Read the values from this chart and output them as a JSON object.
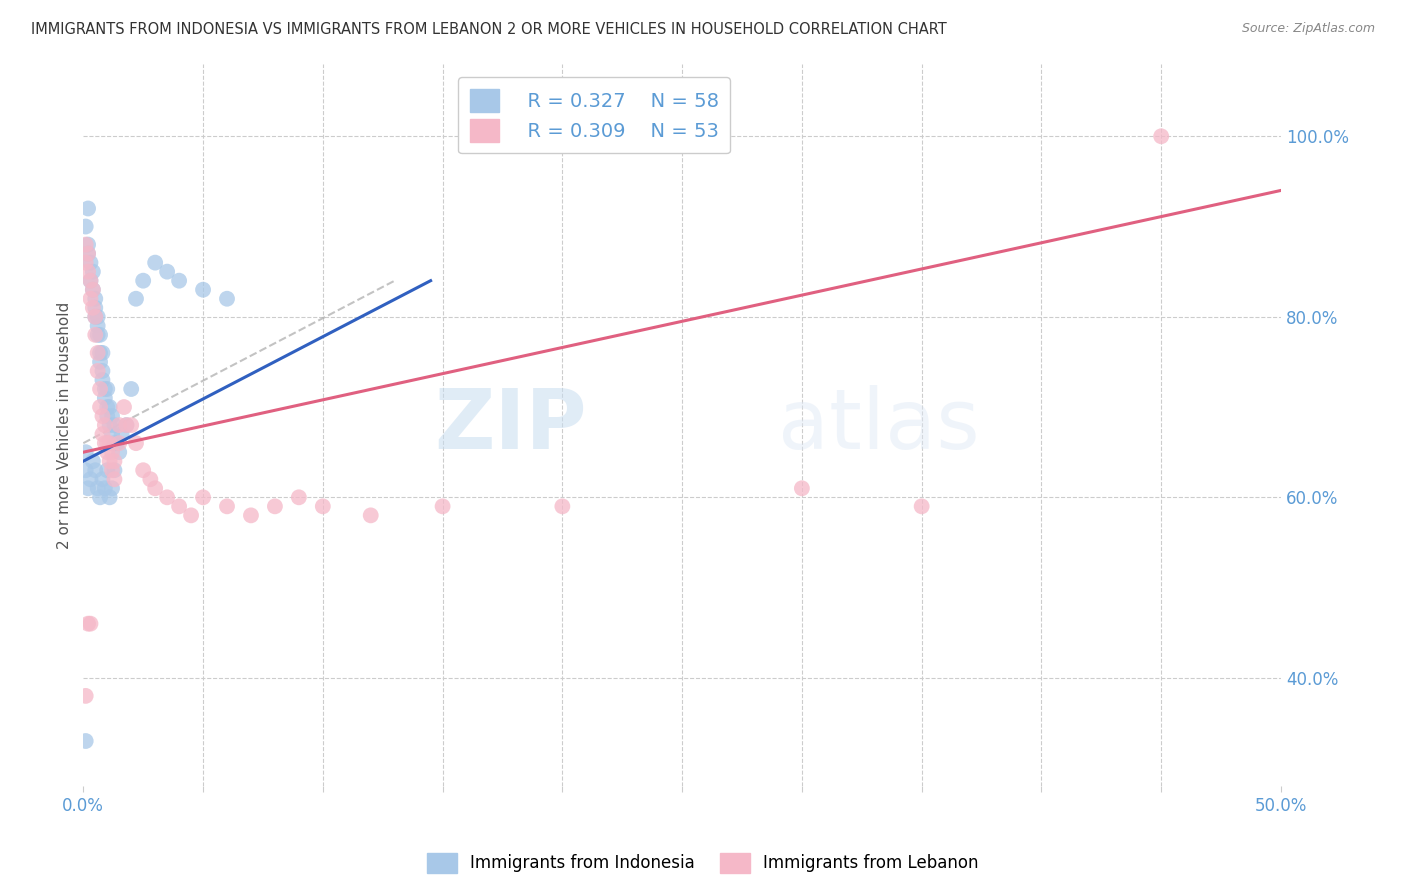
{
  "title": "IMMIGRANTS FROM INDONESIA VS IMMIGRANTS FROM LEBANON 2 OR MORE VEHICLES IN HOUSEHOLD CORRELATION CHART",
  "source": "Source: ZipAtlas.com",
  "ylabel": "2 or more Vehicles in Household",
  "right_ytick_vals": [
    0.4,
    0.6,
    0.8,
    1.0
  ],
  "right_ytick_labels": [
    "40.0%",
    "60.0%",
    "80.0%",
    "100.0%"
  ],
  "xmin": 0.0,
  "xmax": 0.5,
  "ymin": 0.28,
  "ymax": 1.08,
  "legend1_R": "0.327",
  "legend1_N": "58",
  "legend2_R": "0.309",
  "legend2_N": "53",
  "blue_color": "#a8c8e8",
  "pink_color": "#f5b8c8",
  "blue_line_color": "#3060c0",
  "pink_line_color": "#e06080",
  "blue_line_x0": 0.0,
  "blue_line_y0": 0.64,
  "blue_line_x1": 0.145,
  "blue_line_y1": 0.84,
  "pink_line_x0": 0.0,
  "pink_line_y0": 0.65,
  "pink_line_x1": 0.5,
  "pink_line_y1": 0.94,
  "dash_line_x0": 0.0,
  "dash_line_y0": 0.66,
  "dash_line_x1": 0.13,
  "dash_line_y1": 0.84,
  "indonesia_x": [
    0.001,
    0.002,
    0.002,
    0.002,
    0.003,
    0.003,
    0.004,
    0.004,
    0.005,
    0.005,
    0.005,
    0.006,
    0.006,
    0.006,
    0.007,
    0.007,
    0.007,
    0.008,
    0.008,
    0.008,
    0.009,
    0.009,
    0.01,
    0.01,
    0.01,
    0.011,
    0.011,
    0.012,
    0.012,
    0.013,
    0.013,
    0.014,
    0.015,
    0.016,
    0.018,
    0.02,
    0.022,
    0.025,
    0.03,
    0.035,
    0.04,
    0.05,
    0.06,
    0.001,
    0.001,
    0.002,
    0.003,
    0.004,
    0.005,
    0.006,
    0.007,
    0.008,
    0.009,
    0.01,
    0.011,
    0.012,
    0.013,
    0.001
  ],
  "indonesia_y": [
    0.9,
    0.87,
    0.92,
    0.88,
    0.86,
    0.84,
    0.85,
    0.83,
    0.82,
    0.8,
    0.81,
    0.79,
    0.78,
    0.8,
    0.76,
    0.78,
    0.75,
    0.74,
    0.76,
    0.73,
    0.71,
    0.72,
    0.7,
    0.72,
    0.69,
    0.68,
    0.7,
    0.67,
    0.69,
    0.66,
    0.68,
    0.66,
    0.65,
    0.67,
    0.68,
    0.72,
    0.82,
    0.84,
    0.86,
    0.85,
    0.84,
    0.83,
    0.82,
    0.65,
    0.63,
    0.61,
    0.62,
    0.64,
    0.63,
    0.61,
    0.6,
    0.62,
    0.61,
    0.63,
    0.6,
    0.61,
    0.63,
    0.33
  ],
  "lebanon_x": [
    0.001,
    0.001,
    0.002,
    0.002,
    0.003,
    0.003,
    0.004,
    0.004,
    0.005,
    0.005,
    0.006,
    0.006,
    0.007,
    0.007,
    0.008,
    0.008,
    0.009,
    0.009,
    0.01,
    0.01,
    0.011,
    0.011,
    0.012,
    0.012,
    0.013,
    0.013,
    0.015,
    0.015,
    0.017,
    0.018,
    0.02,
    0.022,
    0.025,
    0.028,
    0.03,
    0.035,
    0.04,
    0.045,
    0.05,
    0.06,
    0.07,
    0.08,
    0.09,
    0.1,
    0.12,
    0.15,
    0.2,
    0.3,
    0.35,
    0.45,
    0.001,
    0.002,
    0.003
  ],
  "lebanon_y": [
    0.88,
    0.86,
    0.87,
    0.85,
    0.84,
    0.82,
    0.83,
    0.81,
    0.8,
    0.78,
    0.76,
    0.74,
    0.72,
    0.7,
    0.69,
    0.67,
    0.66,
    0.68,
    0.65,
    0.66,
    0.64,
    0.66,
    0.63,
    0.65,
    0.64,
    0.62,
    0.66,
    0.68,
    0.7,
    0.68,
    0.68,
    0.66,
    0.63,
    0.62,
    0.61,
    0.6,
    0.59,
    0.58,
    0.6,
    0.59,
    0.58,
    0.59,
    0.6,
    0.59,
    0.58,
    0.59,
    0.59,
    0.61,
    0.59,
    1.0,
    0.38,
    0.46,
    0.46
  ]
}
